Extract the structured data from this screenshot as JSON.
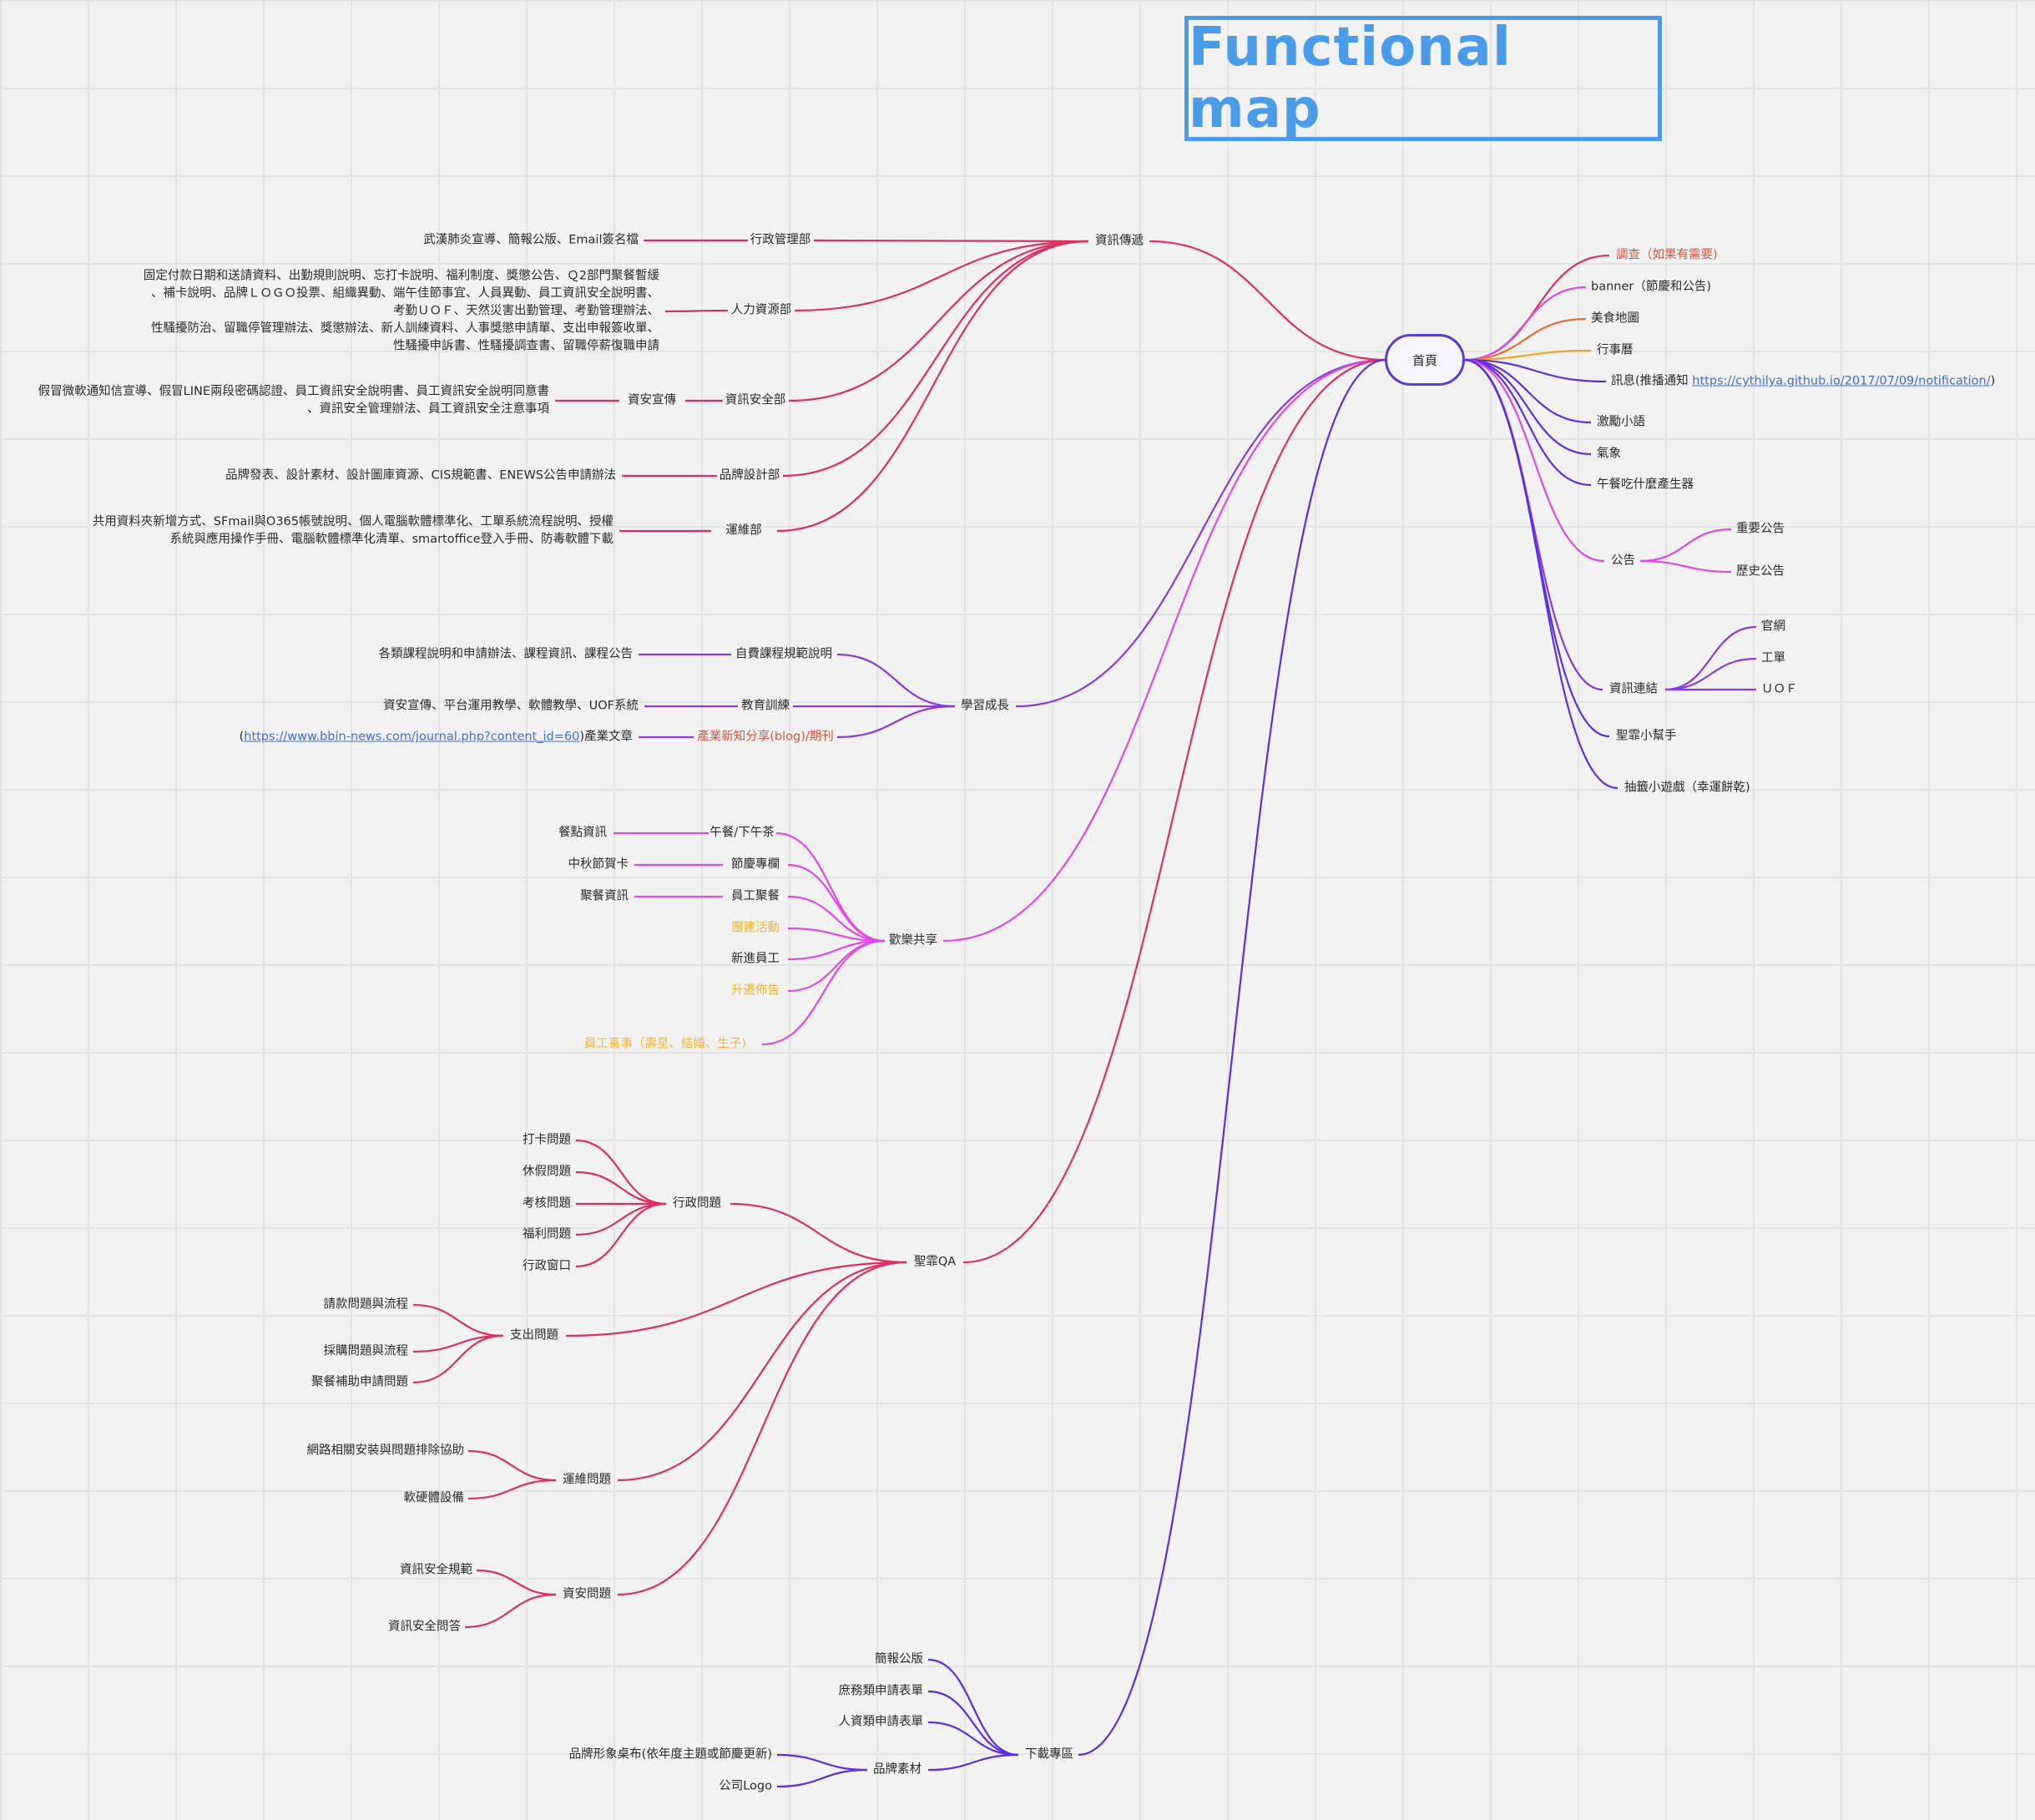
{
  "title": "Functional map",
  "colors": {
    "pink": "#dd2f62",
    "purple": "#8a3ae0",
    "magenta": "#e148e6",
    "violet": "#5b2ee0",
    "orange": "#ef6c35",
    "amber": "#f0a52a",
    "title_blue": "#4a9ce8"
  },
  "root": {
    "label": "首頁"
  },
  "right": {
    "survey": "調查（如果有需要)",
    "banner": "banner（節慶和公告)",
    "food_map": "美食地圖",
    "calendar": "行事曆",
    "notify": "訊息(推播通知 ",
    "notify_link": "https://cythilya.github.io/2017/07/09/notification/",
    "notify_end": ")",
    "motto": "激勵小語",
    "weather": "氣象",
    "lunch_gen": "午餐吃什麼產生器",
    "announce": "公告",
    "announce_important": "重要公告",
    "announce_history": "歷史公告",
    "links": "資訊連結",
    "links_official": "官網",
    "links_ticket": "工單",
    "links_uof": "ＵＯＦ",
    "helper": "聖霏小幫手",
    "lottery": "抽籤小遊戲（幸運餅乾)"
  },
  "info": {
    "label": "資訊傳遞",
    "admin": "行政管理部",
    "admin_detail": "武漢肺炎宣導、簡報公版、Email簽名檔",
    "hr": "人力資源部",
    "hr_detail": [
      "固定付款日期和送請資料、出勤規則說明、忘打卡說明、福利制度、獎懲公告、Ｑ2部門聚餐暫緩",
      "、補卡說明、品牌ＬＯＧＯ投票、組織異動、端午佳節事宜、人員異動、員工資訊安全說明書、",
      "考勤ＵＯＦ、天然災害出勤管理、考勤管理辦法、",
      "性騷擾防治、留職停管理辦法、獎懲辦法、新人訓練資料、人事獎懲申請單、支出申報簽收單、",
      "性騷擾申訴書、性騷擾調查書、留職停薪復職申請"
    ],
    "security": "資訊安全部",
    "security_sub": "資安宣傳",
    "security_detail": [
      "假冒微軟通知信宣導、假冒LINE兩段密碼認證、員工資訊安全說明書、員工資訊安全說明同意書",
      "、資訊安全管理辦法、員工資訊安全注意事項"
    ],
    "brand": "品牌設計部",
    "brand_detail": "品牌發表、設計素材、設計圖庫資源、CIS規範書、ENEWS公告申請辦法",
    "ops": "運維部",
    "ops_detail": [
      "共用資料夾新增方式、SFmail與O365帳號說明、個人電腦軟體標準化、工單系統流程說明、授權",
      "系統與應用操作手冊、電腦軟體標準化清單、smartoffice登入手冊、防毒軟體下載"
    ]
  },
  "learn": {
    "label": "學習成長",
    "course": "自費課程規範說明",
    "course_detail": "各類課程說明和申請辦法、課程資訊、課程公告",
    "training": "教育訓練",
    "training_detail": "資安宣傳、平台運用教學、軟體教學、UOF系統",
    "blog": "產業新知分享(blog)/期刊",
    "blog_pre": "(",
    "blog_link": "https://www.bbin-news.com/journal.php?content_id=60",
    "blog_post": ")產業文章"
  },
  "fun": {
    "label": "歡樂共享",
    "tea": "午餐/下午茶",
    "tea_detail": "餐點資訊",
    "festival": "節慶專欄",
    "festival_detail": "中秋節賀卡",
    "dinner": "員工聚餐",
    "dinner_detail": "聚餐資訊",
    "team": "團建活動",
    "newbie": "新進員工",
    "promotion": "升遷佈告",
    "happy": "員工喜事（壽星、結婚、生子)"
  },
  "qa": {
    "label": "聖霏QA",
    "admin": "行政問題",
    "admin_items": [
      "打卡問題",
      "休假問題",
      "考核問題",
      "福利問題",
      "行政窗口"
    ],
    "expense": "支出問題",
    "expense_items": [
      "請款問題與流程",
      "採購問題與流程",
      "聚餐補助申請問題"
    ],
    "ops": "運維問題",
    "ops_items": [
      "網路相關安裝與問題排除協助",
      "軟硬體設備"
    ],
    "sec": "資安問題",
    "sec_items": [
      "資訊安全規範",
      "資訊安全問答"
    ]
  },
  "download": {
    "label": "下載專區",
    "items": [
      "簡報公版",
      "庶務類申請表單",
      "人資類申請表單"
    ],
    "brand": "品牌素材",
    "brand_items": [
      "品牌形象桌布(依年度主題或節慶更新)",
      "公司Logo"
    ]
  }
}
